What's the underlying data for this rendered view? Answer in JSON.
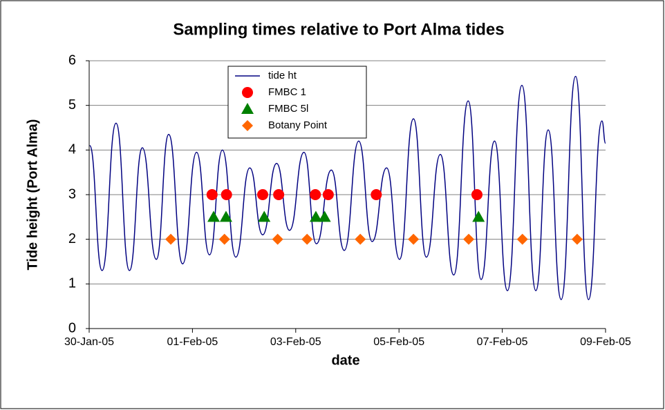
{
  "chart_data": {
    "type": "line",
    "title": "Sampling times relative to Port Alma tides",
    "xlabel": "date",
    "ylabel": "Tide height (Port Alma)",
    "xlim": [
      38382,
      38392
    ],
    "xticks": [
      {
        "value": 38382,
        "label": "30-Jan-05"
      },
      {
        "value": 38384,
        "label": "01-Feb-05"
      },
      {
        "value": 38386,
        "label": "03-Feb-05"
      },
      {
        "value": 38388,
        "label": "05-Feb-05"
      },
      {
        "value": 38390,
        "label": "07-Feb-05"
      },
      {
        "value": 38392,
        "label": "09-Feb-05"
      }
    ],
    "ylim": [
      0,
      6
    ],
    "yticks": [
      0,
      1,
      2,
      3,
      4,
      5,
      6
    ],
    "grid": true,
    "legend": "top",
    "series": [
      {
        "name": "tide ht",
        "color": "#000080",
        "marker": "none",
        "x": [
          38382.01,
          38382.25,
          38382.52,
          38382.78,
          38383.03,
          38383.3,
          38383.54,
          38383.81,
          38384.08,
          38384.33,
          38384.58,
          38384.84,
          38385.11,
          38385.36,
          38385.63,
          38385.88,
          38386.16,
          38386.4,
          38386.69,
          38386.94,
          38387.22,
          38387.48,
          38387.76,
          38388.01,
          38388.28,
          38388.53,
          38388.8,
          38389.06,
          38389.34,
          38389.59,
          38389.85,
          38390.1,
          38390.38,
          38390.65,
          38390.89,
          38391.14,
          38391.42,
          38391.67,
          38391.93,
          38392.0
        ],
        "values": [
          4.1,
          1.3,
          4.6,
          1.3,
          4.05,
          1.55,
          4.35,
          1.45,
          3.95,
          1.65,
          4.0,
          1.6,
          3.6,
          2.1,
          3.7,
          2.2,
          3.95,
          1.9,
          3.55,
          1.75,
          4.2,
          1.95,
          3.6,
          1.55,
          4.7,
          1.6,
          3.9,
          1.2,
          5.1,
          1.1,
          4.2,
          0.85,
          5.45,
          0.85,
          4.45,
          0.65,
          5.65,
          0.65,
          4.65,
          4.15
        ]
      },
      {
        "name": "FMBC 1",
        "color": "#ff0000",
        "marker": "circle",
        "x": [
          38384.38,
          38384.66,
          38385.36,
          38385.67,
          38386.38,
          38386.63,
          38387.56,
          38389.51
        ],
        "values": [
          3,
          3,
          3,
          3,
          3,
          3,
          3,
          3
        ]
      },
      {
        "name": "FMBC 5l",
        "color": "#008000",
        "marker": "triangle",
        "x": [
          38384.41,
          38384.65,
          38385.39,
          38386.39,
          38386.56,
          38389.54
        ],
        "values": [
          2.5,
          2.5,
          2.5,
          2.5,
          2.5,
          2.5
        ]
      },
      {
        "name": "Botany Point",
        "color": "#ff6600",
        "marker": "diamond",
        "x": [
          38383.58,
          38384.62,
          38385.65,
          38386.22,
          38387.25,
          38388.28,
          38389.35,
          38390.39,
          38391.45
        ],
        "values": [
          2,
          2,
          2,
          2,
          2,
          2,
          2,
          2,
          2
        ]
      }
    ]
  }
}
